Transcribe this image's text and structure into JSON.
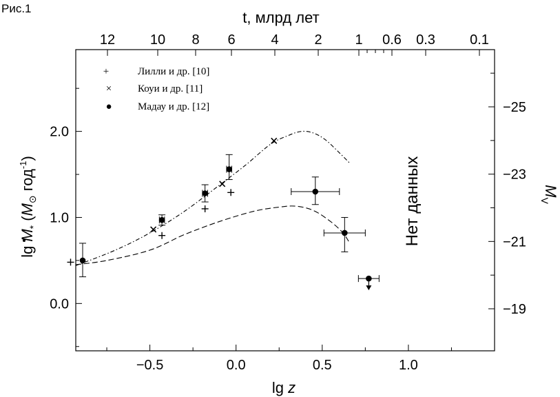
{
  "figure_label": "Рис.1",
  "chart_data": {
    "type": "scatter",
    "x_label": "lg z",
    "top_axis_label": "t, млрд лет",
    "y_label": {
      "prefix": "lg",
      "sym": "M",
      "sub": "*",
      "units_open": " (",
      "units_sym": "M",
      "units_rest": " год",
      "units_sup": "-1",
      "units_close": ")"
    },
    "right_axis_label": {
      "sym": "M",
      "sub": "V"
    },
    "xlim": [
      -0.93,
      1.5
    ],
    "ylim": [
      -0.55,
      2.95
    ],
    "x_ticks": [
      "-0.5",
      "0.0",
      "0.5",
      "1.0"
    ],
    "x_tick_labels": [
      "−0.5",
      "0.0",
      "0.5",
      "1.0"
    ],
    "y_ticks": [
      "0.0",
      "1.0",
      "2.0"
    ],
    "y_tick_labels": [
      "0.0",
      "1.0",
      "2.0"
    ],
    "top_ticks": [
      {
        "t": "12",
        "label": "12"
      },
      {
        "t": "10",
        "label": "10"
      },
      {
        "t": "8",
        "label": "8"
      },
      {
        "t": "6",
        "label": "6"
      },
      {
        "t": "4",
        "label": "4"
      },
      {
        "t": "2",
        "label": "2"
      },
      {
        "t": "1",
        "label": "1"
      },
      {
        "t": "0.6",
        "label": "0.6"
      },
      {
        "t": "0.3",
        "label": "0.3"
      },
      {
        "t": "0.1",
        "label": "0.1"
      }
    ],
    "top_minor_ticks": [
      0.9,
      0.8,
      0.7
    ],
    "right_ticks": [
      {
        "mv": "-25",
        "label": "−25"
      },
      {
        "mv": "-23",
        "label": "−23"
      },
      {
        "mv": "-21",
        "label": "−21"
      },
      {
        "mv": "-19",
        "label": "−19"
      }
    ],
    "right_minor_ticks": [
      -26,
      -24,
      -22,
      -20
    ],
    "annotation": "Нет данных",
    "legend": {
      "placement": "top-left",
      "entries": [
        {
          "marker": "+",
          "label": "Лилли и др. [10]"
        },
        {
          "marker": "×",
          "label": "Коуи и др. [11]"
        },
        {
          "marker": "●",
          "label": "Мадау и др. [12]"
        }
      ]
    },
    "series": [
      {
        "name": "Лилли и др. [10]",
        "marker": "plus",
        "points": [
          {
            "x": -0.96,
            "y": 0.48
          },
          {
            "x": -0.43,
            "y": 0.79
          },
          {
            "x": -0.18,
            "y": 1.1
          },
          {
            "x": -0.03,
            "y": 1.29
          }
        ]
      },
      {
        "name": "Коуи и др. [11]",
        "marker": "cross",
        "points": [
          {
            "x": -0.48,
            "y": 0.86
          },
          {
            "x": -0.08,
            "y": 1.39
          },
          {
            "x": 0.22,
            "y": 1.89
          }
        ]
      },
      {
        "name": "Мадау и др. [12]",
        "marker": "dot",
        "points": [
          {
            "x": -0.89,
            "y": 0.5,
            "yerr": [
              0.19,
              0.2
            ]
          },
          {
            "x": -0.43,
            "y": 0.97,
            "yerr": [
              0.06,
              0.06
            ],
            "xerr": [
              0.015,
              0.015
            ]
          },
          {
            "x": -0.18,
            "y": 1.28,
            "yerr": [
              0.1,
              0.1
            ],
            "xerr": [
              0.015,
              0.015
            ]
          },
          {
            "x": -0.04,
            "y": 1.56,
            "yerr": [
              0.12,
              0.17
            ],
            "xerr": [
              0.015,
              0.015
            ]
          },
          {
            "x": 0.46,
            "y": 1.3,
            "yerr": [
              0.15,
              0.17
            ],
            "xerr": [
              0.14,
              0.14
            ]
          },
          {
            "x": 0.63,
            "y": 0.82,
            "yerr": [
              0.22,
              0.18
            ],
            "xerr": [
              0.12,
              0.12
            ]
          },
          {
            "x": 0.77,
            "y": 0.29,
            "xerr": [
              0.06,
              0.06
            ],
            "upper_limit": true
          }
        ]
      }
    ],
    "curves": [
      {
        "style": "dash-dot",
        "points": [
          [
            -0.93,
            0.44
          ],
          [
            -0.7,
            0.62
          ],
          [
            -0.5,
            0.82
          ],
          [
            -0.3,
            1.07
          ],
          [
            -0.1,
            1.37
          ],
          [
            0.05,
            1.6
          ],
          [
            0.2,
            1.85
          ],
          [
            0.3,
            1.95
          ],
          [
            0.38,
            2.0
          ],
          [
            0.45,
            1.98
          ],
          [
            0.52,
            1.9
          ],
          [
            0.6,
            1.75
          ],
          [
            0.66,
            1.63
          ]
        ]
      },
      {
        "style": "dashed",
        "points": [
          [
            -0.93,
            0.45
          ],
          [
            -0.75,
            0.5
          ],
          [
            -0.5,
            0.62
          ],
          [
            -0.3,
            0.8
          ],
          [
            -0.1,
            0.95
          ],
          [
            0.1,
            1.07
          ],
          [
            0.25,
            1.12
          ],
          [
            0.35,
            1.13
          ],
          [
            0.45,
            1.08
          ],
          [
            0.55,
            0.95
          ],
          [
            0.62,
            0.82
          ],
          [
            0.66,
            0.7
          ]
        ]
      }
    ]
  }
}
